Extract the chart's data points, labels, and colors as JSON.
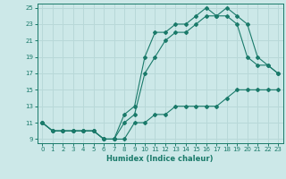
{
  "xlabel": "Humidex (Indice chaleur)",
  "background_color": "#cce8e8",
  "grid_color": "#b8d8d8",
  "line_color": "#1a7a6a",
  "xlim": [
    -0.5,
    23.5
  ],
  "ylim": [
    8.5,
    25.5
  ],
  "xticks": [
    0,
    1,
    2,
    3,
    4,
    5,
    6,
    7,
    8,
    9,
    10,
    11,
    12,
    13,
    14,
    15,
    16,
    17,
    18,
    19,
    20,
    21,
    22,
    23
  ],
  "yticks": [
    9,
    11,
    13,
    15,
    17,
    19,
    21,
    23,
    25
  ],
  "series": [
    {
      "x": [
        0,
        1,
        2,
        3,
        4,
        5,
        6,
        7,
        8,
        9,
        10,
        11,
        12,
        13,
        14,
        15,
        16,
        17,
        18,
        19,
        20,
        21,
        22,
        23
      ],
      "y": [
        11,
        10,
        10,
        10,
        10,
        10,
        9,
        9,
        9,
        11,
        11,
        12,
        12,
        13,
        13,
        13,
        13,
        13,
        14,
        15,
        15,
        15,
        15,
        15
      ]
    },
    {
      "x": [
        0,
        1,
        2,
        3,
        4,
        5,
        6,
        7,
        8,
        9,
        10,
        11,
        12,
        13,
        14,
        15,
        16,
        17,
        18,
        19,
        20,
        21,
        22,
        23
      ],
      "y": [
        11,
        10,
        10,
        10,
        10,
        10,
        9,
        9,
        11,
        12,
        17,
        19,
        21,
        22,
        22,
        23,
        24,
        24,
        24,
        23,
        19,
        18,
        18,
        17
      ]
    },
    {
      "x": [
        0,
        1,
        2,
        3,
        4,
        5,
        6,
        7,
        8,
        9,
        10,
        11,
        12,
        13,
        14,
        15,
        16,
        17,
        18,
        19,
        20,
        21,
        22,
        23
      ],
      "y": [
        11,
        10,
        10,
        10,
        10,
        10,
        9,
        9,
        12,
        13,
        19,
        22,
        22,
        23,
        23,
        24,
        25,
        24,
        25,
        24,
        23,
        19,
        18,
        17
      ]
    }
  ]
}
